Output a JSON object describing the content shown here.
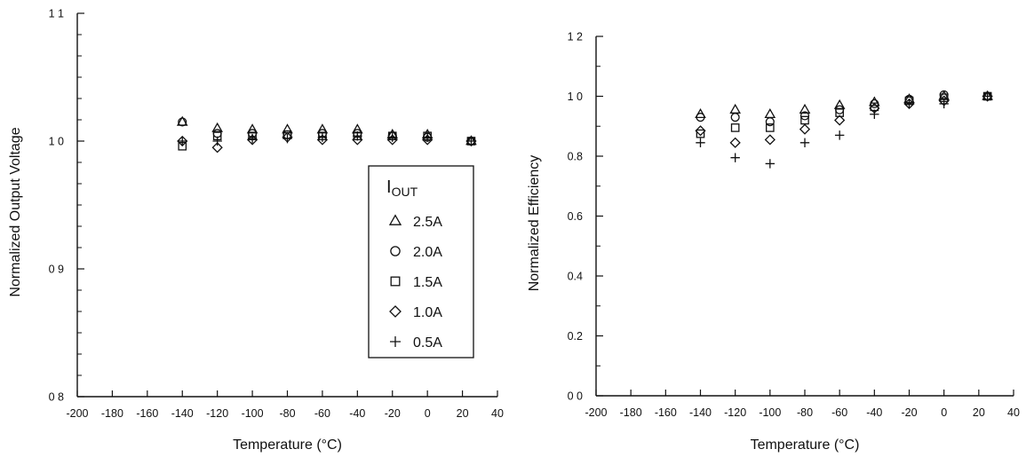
{
  "chart_data": [
    {
      "type": "scatter",
      "xlabel": "Temperature (°C)",
      "ylabel": "Normalized Output Voltage",
      "xlim": [
        -200,
        40
      ],
      "ylim": [
        0.8,
        1.1
      ],
      "xticks": [
        -200,
        -180,
        -160,
        -140,
        -120,
        -100,
        -80,
        -60,
        -40,
        -20,
        0,
        20,
        40
      ],
      "xtick_labels": [
        "-200",
        "-180",
        "-160",
        "-140",
        "-120",
        "-100",
        "-80",
        "-60",
        "-40",
        "-20",
        "0",
        "20",
        "40"
      ],
      "yticks": [
        0.8,
        0.9,
        1.0,
        1.1
      ],
      "ytick_labels": [
        "0 8",
        "0 9",
        "1 0",
        "1 1"
      ],
      "grid": false,
      "legend": {
        "title_main": "I",
        "title_sub": "OUT",
        "placement": "center-right"
      },
      "x": [
        -140,
        -120,
        -100,
        -80,
        -60,
        -40,
        -20,
        0,
        25
      ],
      "series": [
        {
          "name": "2.5A",
          "marker": "triangle",
          "values": [
            1.015,
            1.01,
            1.009,
            1.009,
            1.009,
            1.009,
            1.005,
            1.005,
            1.0
          ]
        },
        {
          "name": "2.0A",
          "marker": "circle",
          "values": [
            1.015,
            1.006,
            1.006,
            1.005,
            1.006,
            1.006,
            1.004,
            1.003,
            1.0
          ]
        },
        {
          "name": "1.5A",
          "marker": "square",
          "values": [
            0.996,
            1.004,
            1.004,
            1.005,
            1.004,
            1.004,
            1.004,
            1.004,
            1.0
          ]
        },
        {
          "name": "1.0A",
          "marker": "diamond",
          "values": [
            1.0,
            0.995,
            1.001,
            1.003,
            1.001,
            1.001,
            1.001,
            1.001,
            1.0
          ]
        },
        {
          "name": "0.5A",
          "marker": "plus",
          "values": [
            1.0,
            1.0,
            1.002,
            1.002,
            1.003,
            1.004,
            1.003,
            1.003,
            1.0
          ]
        }
      ]
    },
    {
      "type": "scatter",
      "xlabel": "Temperature (°C)",
      "ylabel": "Normalized Efficiency",
      "xlim": [
        -200,
        40
      ],
      "ylim": [
        0.0,
        1.2
      ],
      "xticks": [
        -200,
        -180,
        -160,
        -140,
        -120,
        -100,
        -80,
        -60,
        -40,
        -20,
        0,
        20,
        40
      ],
      "xtick_labels": [
        "-200",
        "-180",
        "-160",
        "-140",
        "-120",
        "-100",
        "-80",
        "-60",
        "-40",
        "-20",
        "0",
        "20",
        "40"
      ],
      "yticks": [
        0.0,
        0.2,
        0.4,
        0.6,
        0.8,
        1.0,
        1.2
      ],
      "ytick_labels": [
        "0 0",
        "0.2",
        "0.4",
        "0.6",
        "0.8",
        "1 0",
        "1 2"
      ],
      "grid": false,
      "x": [
        -140,
        -120,
        -100,
        -80,
        -60,
        -40,
        -20,
        0,
        25
      ],
      "series": [
        {
          "name": "2.5A",
          "marker": "triangle",
          "values": [
            0.94,
            0.955,
            0.94,
            0.955,
            0.97,
            0.98,
            0.99,
            1.0,
            1.0
          ]
        },
        {
          "name": "2.0A",
          "marker": "circle",
          "values": [
            0.93,
            0.93,
            0.915,
            0.935,
            0.955,
            0.975,
            0.99,
            1.005,
            1.0
          ]
        },
        {
          "name": "1.5A",
          "marker": "square",
          "values": [
            0.875,
            0.895,
            0.895,
            0.92,
            0.945,
            0.965,
            0.985,
            0.995,
            1.0
          ]
        },
        {
          "name": "1.0A",
          "marker": "diamond",
          "values": [
            0.885,
            0.845,
            0.855,
            0.89,
            0.92,
            0.96,
            0.975,
            0.985,
            1.0
          ]
        },
        {
          "name": "0.5A",
          "marker": "plus",
          "values": [
            0.845,
            0.795,
            0.775,
            0.845,
            0.87,
            0.94,
            0.975,
            0.975,
            1.0
          ]
        }
      ]
    }
  ]
}
